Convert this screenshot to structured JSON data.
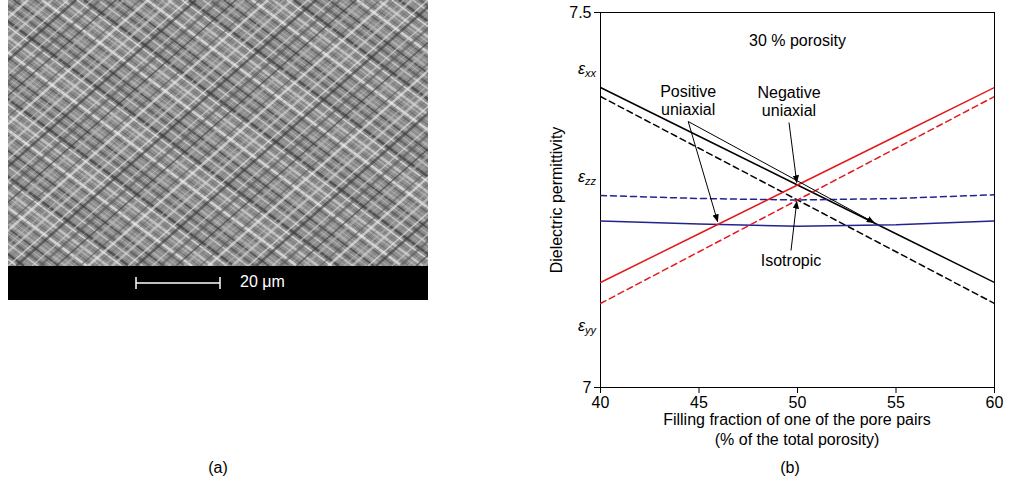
{
  "micrograph": {
    "panel": "(a)",
    "scale_bar": "20 μm"
  },
  "chart_data": {
    "panel": "(b)",
    "type": "line",
    "title": "30 % porosity",
    "xlabel": [
      "Filling fraction of one of the pore pairs",
      "(% of the total porosity)"
    ],
    "ylabel": "Dielectric permittivity",
    "x": [
      40,
      45,
      50,
      55,
      60
    ],
    "xlim": [
      40,
      60
    ],
    "xticks": [
      40,
      45,
      50,
      55,
      60
    ],
    "ylim": [
      7,
      7.5
    ],
    "yticks": [
      7,
      7.5
    ],
    "grid": false,
    "series": [
      {
        "name": "εxx",
        "color": "#000000",
        "line_style": "solid",
        "values": [
          7.4,
          7.335,
          7.27,
          7.205,
          7.14
        ]
      },
      {
        "name": "εxx",
        "color": "#000000",
        "line_style": "dashed",
        "values": [
          7.388,
          7.319,
          7.25,
          7.181,
          7.112
        ]
      },
      {
        "name": "εzz",
        "color": "#23238e",
        "line_style": "dashed",
        "values": [
          7.256,
          7.252,
          7.25,
          7.252,
          7.257
        ]
      },
      {
        "name": "εzz",
        "color": "#23238e",
        "line_style": "solid",
        "values": [
          7.222,
          7.218,
          7.215,
          7.217,
          7.222
        ]
      },
      {
        "name": "εyy",
        "color": "#e31a1c",
        "line_style": "solid",
        "values": [
          7.14,
          7.205,
          7.27,
          7.335,
          7.4
        ]
      },
      {
        "name": "εyy",
        "color": "#e31a1c",
        "line_style": "dashed",
        "values": [
          7.112,
          7.181,
          7.25,
          7.319,
          7.388
        ]
      }
    ],
    "annotations": [
      {
        "text": "Positive uniaxial",
        "points": [
          [
            46,
            7.218
          ],
          [
            54,
            7.218
          ]
        ]
      },
      {
        "text": "Negative uniaxial",
        "points": [
          [
            50,
            7.27
          ]
        ]
      },
      {
        "text": "Isotropic",
        "points": [
          [
            50,
            7.25
          ]
        ]
      }
    ]
  }
}
